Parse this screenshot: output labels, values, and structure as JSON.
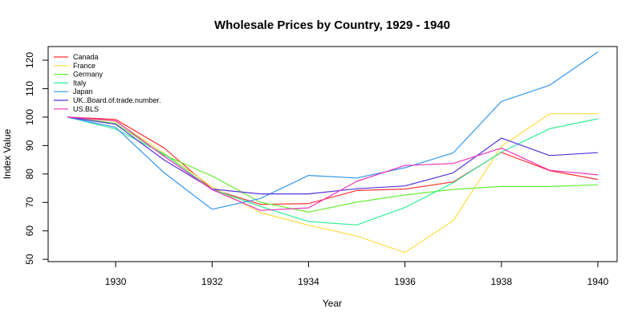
{
  "chart_data": {
    "type": "line",
    "title": "Wholesale Prices by Country,  1929 - 1940",
    "xlabel": "Year",
    "ylabel": "Index Value",
    "xlim": [
      1928.6,
      1940.4
    ],
    "ylim": [
      49.2,
      124.8
    ],
    "xticks": [
      1930,
      1932,
      1934,
      1936,
      1938,
      1940
    ],
    "xtick_labels": [
      "1930",
      "1932",
      "1934",
      "1936",
      "1938",
      "1940"
    ],
    "yticks": [
      50,
      60,
      70,
      80,
      90,
      100,
      110,
      120
    ],
    "ytick_labels": [
      "50",
      "60",
      "70",
      "80",
      "90",
      "100",
      "110",
      "120"
    ],
    "legend_position": "top-left",
    "grid": false,
    "x": [
      1929,
      1930,
      1931,
      1932,
      1933,
      1934,
      1935,
      1936,
      1937,
      1938,
      1939,
      1940
    ],
    "series": [
      {
        "name": "Canada",
        "color": "#ff3333",
        "values": [
          100,
          99.2,
          89.2,
          74.7,
          69.3,
          69.6,
          74.2,
          74.7,
          77.2,
          87.6,
          81.2,
          78.1
        ]
      },
      {
        "name": "France",
        "color": "#ffdd44",
        "values": [
          100,
          98.5,
          87.3,
          75.5,
          66.4,
          62.0,
          58.2,
          52.4,
          63.6,
          89.7,
          101.2,
          101.2
        ]
      },
      {
        "name": "Germany",
        "color": "#66ee33",
        "values": [
          100,
          97.8,
          86.7,
          79.3,
          70.1,
          66.6,
          70.1,
          72.6,
          74.6,
          75.6,
          75.6,
          76.2
        ]
      },
      {
        "name": "Italy",
        "color": "#33ee99",
        "values": [
          100,
          95.8,
          87.1,
          74.6,
          68.6,
          63.3,
          62.1,
          68.2,
          76.9,
          87.7,
          95.9,
          99.4
        ]
      },
      {
        "name": "Japan",
        "color": "#3399ee",
        "values": [
          100,
          96.4,
          80.5,
          67.6,
          71.4,
          79.5,
          78.6,
          82.2,
          87.4,
          105.5,
          111.2,
          122.9
        ]
      },
      {
        "name": "UK..Board.of.trade.number.",
        "color": "#5533dd",
        "values": [
          100,
          97.5,
          85.0,
          74.7,
          73.0,
          73.0,
          74.8,
          75.8,
          80.4,
          92.6,
          86.5,
          87.5
        ]
      },
      {
        "name": "US.BLS",
        "color": "#ee33bb",
        "values": [
          100,
          98.7,
          86.3,
          74.5,
          67.2,
          68.1,
          77.4,
          83.0,
          83.7,
          89.1,
          81.3,
          79.7
        ]
      }
    ]
  }
}
